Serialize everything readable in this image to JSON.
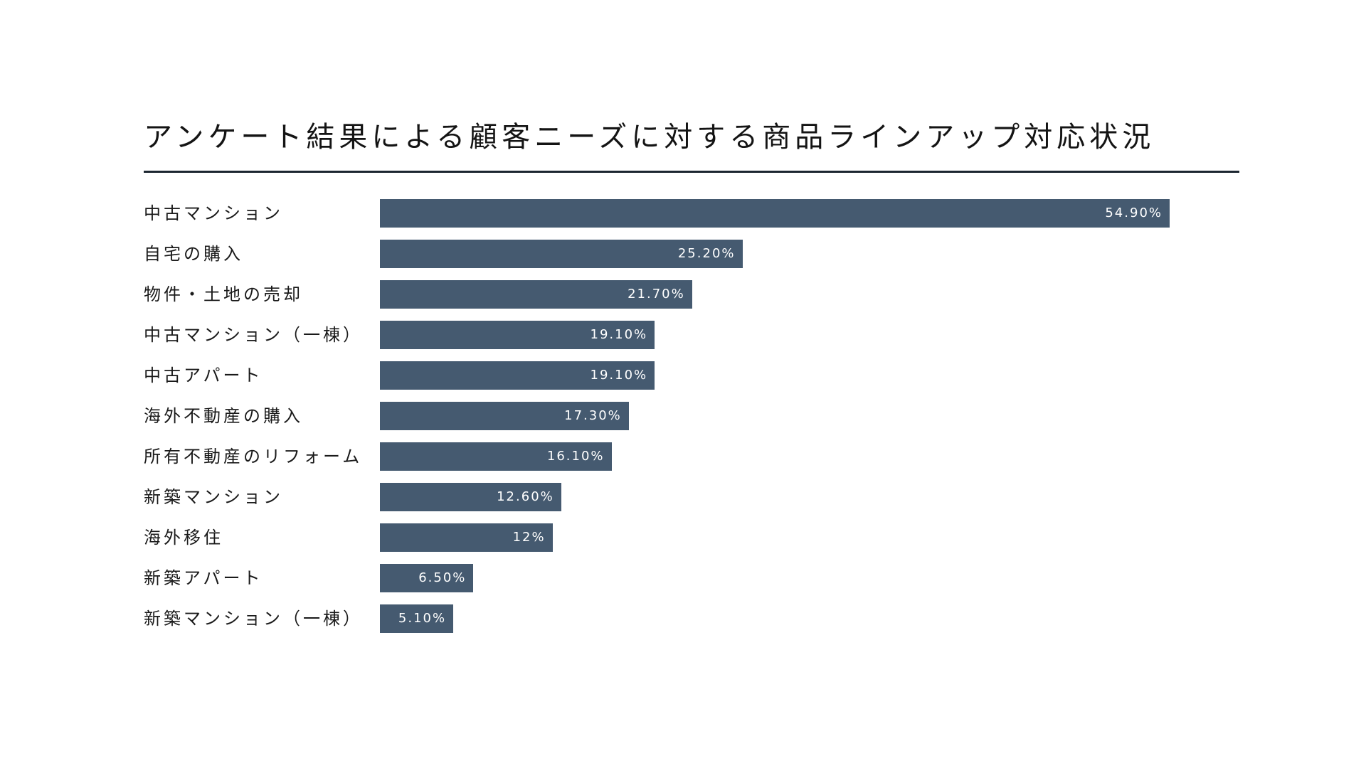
{
  "chart_data": {
    "type": "bar",
    "orientation": "horizontal",
    "title": "アンケート結果による顧客ニーズに対する商品ラインアップ対応状況",
    "categories": [
      "中古マンション",
      "自宅の購入",
      "物件・土地の売却",
      "中古マンション（一棟）",
      "中古アパート",
      "海外不動産の購入",
      "所有不動産のリフォーム",
      "新築マンション",
      "海外移住",
      "新築アパート",
      "新築マンション（一棟）"
    ],
    "values": [
      54.9,
      25.2,
      21.7,
      19.1,
      19.1,
      17.3,
      16.1,
      12.6,
      12,
      6.5,
      5.1
    ],
    "value_labels": [
      "54.90%",
      "25.20%",
      "21.70%",
      "19.10%",
      "19.10%",
      "17.30%",
      "16.10%",
      "12.60%",
      "12%",
      "6.50%",
      "5.10%"
    ],
    "unit": "%",
    "xlim": [
      0,
      60
    ],
    "bar_color": "#455a70",
    "grid": false,
    "legend": "none"
  }
}
